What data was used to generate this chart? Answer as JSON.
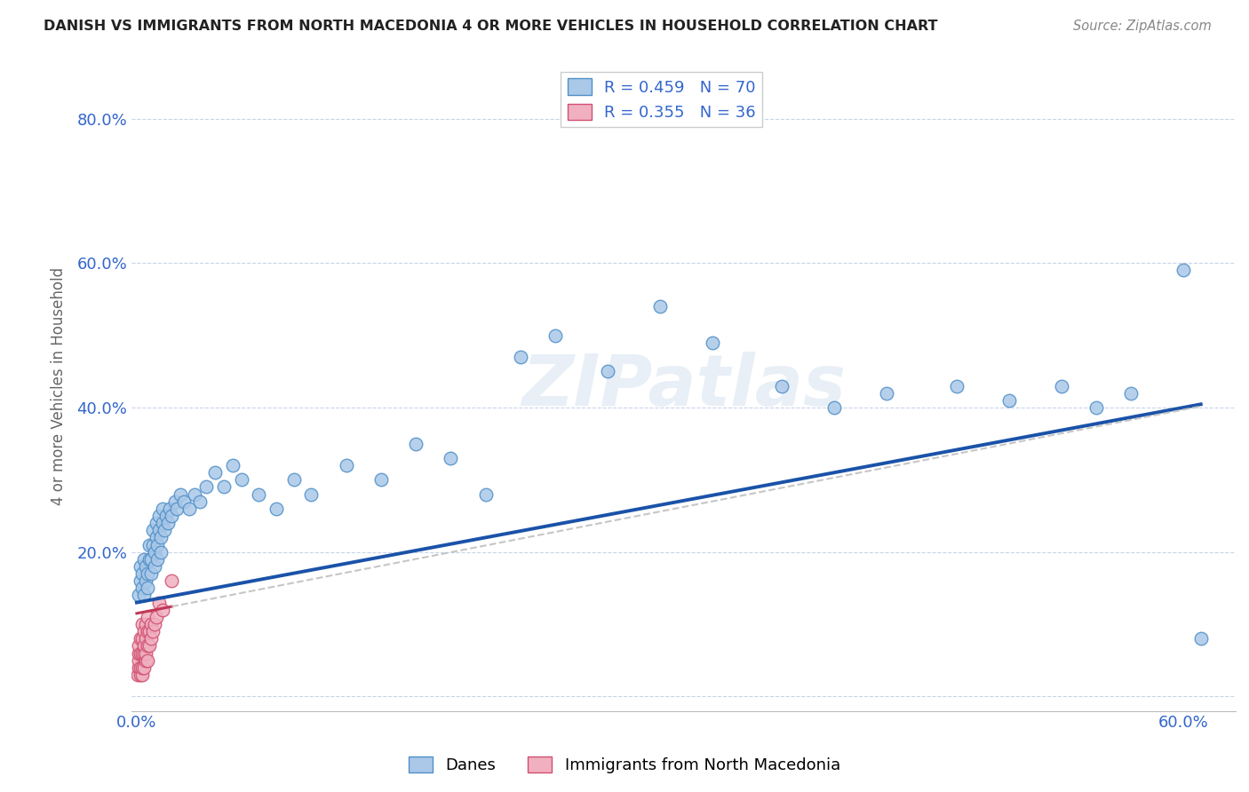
{
  "title": "DANISH VS IMMIGRANTS FROM NORTH MACEDONIA 4 OR MORE VEHICLES IN HOUSEHOLD CORRELATION CHART",
  "source": "Source: ZipAtlas.com",
  "ylabel": "4 or more Vehicles in Household",
  "xlim": [
    -0.003,
    0.63
  ],
  "ylim": [
    -0.02,
    0.88
  ],
  "xticks": [
    0.0,
    0.1,
    0.2,
    0.3,
    0.4,
    0.5,
    0.6
  ],
  "yticks": [
    0.0,
    0.2,
    0.4,
    0.6,
    0.8
  ],
  "danes_color": "#aac8e8",
  "danes_edge_color": "#5090c8",
  "macedonian_color": "#f0b0c0",
  "macedonian_edge_color": "#d05070",
  "danes_line_color": "#1a52a8",
  "macedonian_line_color": "#c03858",
  "danes_R": 0.459,
  "danes_N": 70,
  "macedonian_R": 0.355,
  "macedonian_N": 36,
  "legend_label_danes": "Danes",
  "legend_label_macedonian": "Immigrants from North Macedonia",
  "watermark": "ZIPatlas",
  "danes_x": [
    0.001,
    0.002,
    0.002,
    0.003,
    0.003,
    0.004,
    0.004,
    0.005,
    0.005,
    0.006,
    0.006,
    0.007,
    0.007,
    0.008,
    0.008,
    0.009,
    0.009,
    0.01,
    0.01,
    0.011,
    0.011,
    0.012,
    0.012,
    0.013,
    0.013,
    0.014,
    0.014,
    0.015,
    0.015,
    0.016,
    0.017,
    0.018,
    0.019,
    0.02,
    0.022,
    0.023,
    0.025,
    0.027,
    0.03,
    0.033,
    0.036,
    0.04,
    0.045,
    0.05,
    0.055,
    0.06,
    0.07,
    0.08,
    0.09,
    0.1,
    0.12,
    0.14,
    0.16,
    0.18,
    0.2,
    0.22,
    0.24,
    0.27,
    0.3,
    0.33,
    0.37,
    0.4,
    0.43,
    0.47,
    0.5,
    0.53,
    0.55,
    0.57,
    0.6,
    0.61
  ],
  "danes_y": [
    0.14,
    0.16,
    0.18,
    0.15,
    0.17,
    0.14,
    0.19,
    0.16,
    0.18,
    0.15,
    0.17,
    0.19,
    0.21,
    0.17,
    0.19,
    0.21,
    0.23,
    0.18,
    0.2,
    0.22,
    0.24,
    0.19,
    0.21,
    0.23,
    0.25,
    0.2,
    0.22,
    0.24,
    0.26,
    0.23,
    0.25,
    0.24,
    0.26,
    0.25,
    0.27,
    0.26,
    0.28,
    0.27,
    0.26,
    0.28,
    0.27,
    0.29,
    0.31,
    0.29,
    0.32,
    0.3,
    0.28,
    0.26,
    0.3,
    0.28,
    0.32,
    0.3,
    0.35,
    0.33,
    0.28,
    0.47,
    0.5,
    0.45,
    0.54,
    0.49,
    0.43,
    0.4,
    0.42,
    0.43,
    0.41,
    0.43,
    0.4,
    0.42,
    0.59,
    0.08
  ],
  "macedonian_x": [
    0.0005,
    0.001,
    0.001,
    0.001,
    0.001,
    0.002,
    0.002,
    0.002,
    0.002,
    0.003,
    0.003,
    0.003,
    0.003,
    0.003,
    0.004,
    0.004,
    0.004,
    0.004,
    0.005,
    0.005,
    0.005,
    0.005,
    0.006,
    0.006,
    0.006,
    0.006,
    0.007,
    0.007,
    0.008,
    0.008,
    0.009,
    0.01,
    0.011,
    0.013,
    0.015,
    0.02
  ],
  "macedonian_y": [
    0.03,
    0.04,
    0.05,
    0.06,
    0.07,
    0.03,
    0.04,
    0.06,
    0.08,
    0.03,
    0.04,
    0.06,
    0.08,
    0.1,
    0.04,
    0.06,
    0.07,
    0.09,
    0.05,
    0.06,
    0.08,
    0.1,
    0.05,
    0.07,
    0.09,
    0.11,
    0.07,
    0.09,
    0.08,
    0.1,
    0.09,
    0.1,
    0.11,
    0.13,
    0.12,
    0.16
  ]
}
